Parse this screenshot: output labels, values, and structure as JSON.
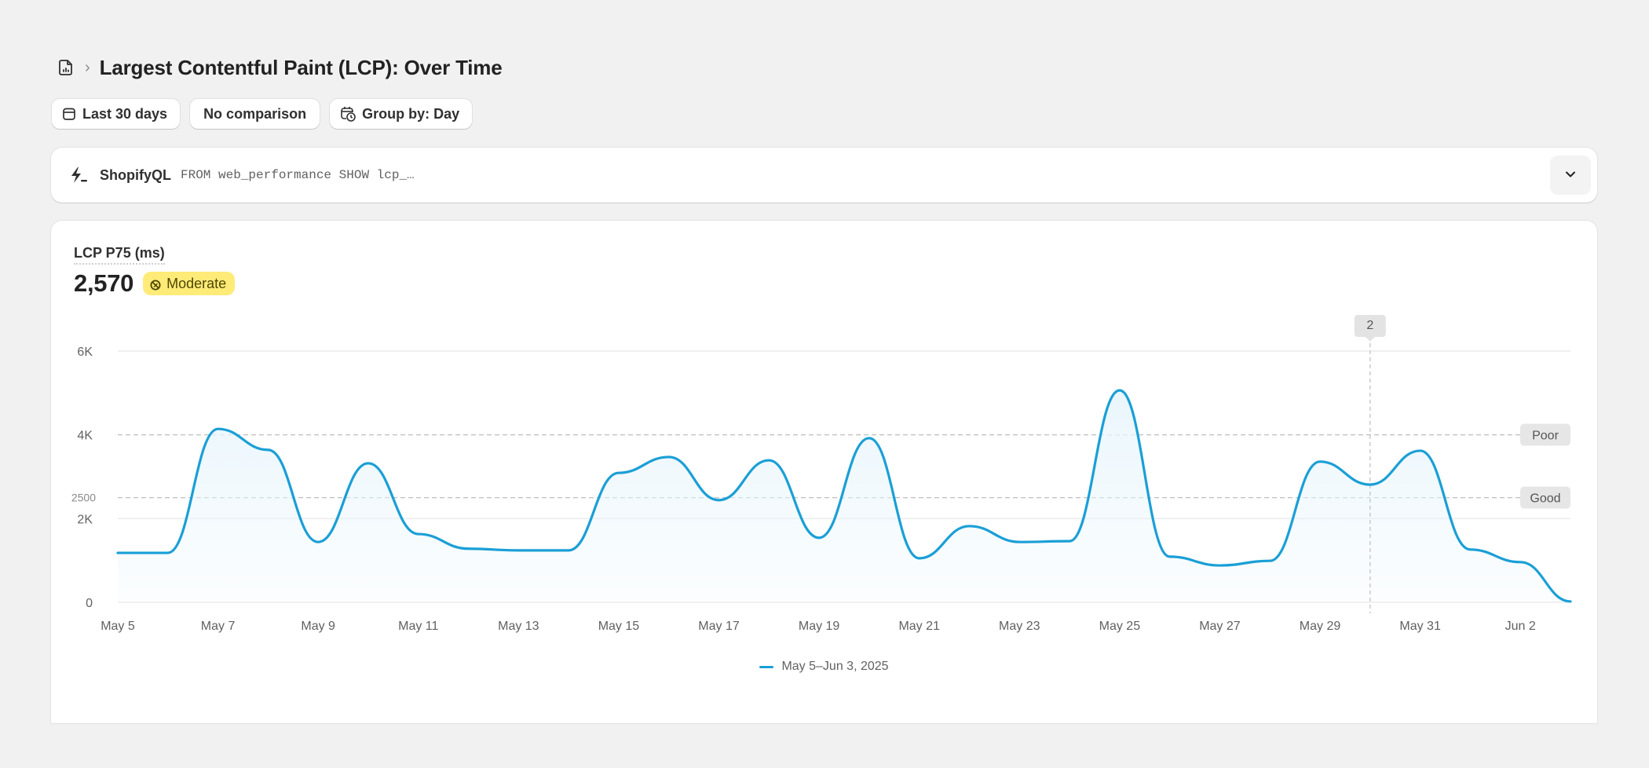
{
  "header": {
    "breadcrumb_icon": "report-icon",
    "title": "Largest Contentful Paint (LCP): Over Time"
  },
  "filters": {
    "date_range": "Last 30 days",
    "comparison": "No comparison",
    "group_by": "Group by: Day"
  },
  "query": {
    "label": "ShopifyQL",
    "code": "FROM web_performance SHOW lcp_…"
  },
  "metric": {
    "label": "LCP P75 (ms)",
    "value": "2,570",
    "badge": "Moderate",
    "badge_color": "#ffeb78"
  },
  "colors": {
    "line": "#1a9fd6",
    "fill": "#e8f5fc",
    "grid": "#ebebeb",
    "threshold": "#c4c4c4"
  },
  "hover": {
    "index_label": "2",
    "date": "May 30"
  },
  "chart_data": {
    "type": "line",
    "title": "LCP P75 (ms)",
    "xlabel": "",
    "ylabel": "",
    "ylim": [
      0,
      6000
    ],
    "grid": true,
    "legend_position": "bottom",
    "y_ticks": [
      "0",
      "2K",
      "4K",
      "6K"
    ],
    "x_tick_labels": [
      "May 5",
      "May 7",
      "May 9",
      "May 11",
      "May 13",
      "May 15",
      "May 17",
      "May 19",
      "May 21",
      "May 23",
      "May 25",
      "May 27",
      "May 29",
      "May 31",
      "Jun 2"
    ],
    "thresholds": [
      {
        "label": "Good",
        "value": 2500,
        "axis_label": "2500"
      },
      {
        "label": "Poor",
        "value": 4000
      }
    ],
    "x": [
      "May 5",
      "May 6",
      "May 7",
      "May 8",
      "May 9",
      "May 10",
      "May 11",
      "May 12",
      "May 13",
      "May 14",
      "May 15",
      "May 16",
      "May 17",
      "May 18",
      "May 19",
      "May 20",
      "May 21",
      "May 22",
      "May 23",
      "May 24",
      "May 25",
      "May 26",
      "May 27",
      "May 28",
      "May 29",
      "May 30",
      "May 31",
      "Jun 1",
      "Jun 2",
      "Jun 3"
    ],
    "series": [
      {
        "name": "May 5–Jun 3, 2025",
        "values": [
          1180,
          1180,
          4140,
          3640,
          1440,
          3320,
          1630,
          1280,
          1240,
          1240,
          3090,
          3470,
          2440,
          3390,
          1540,
          3920,
          1050,
          1820,
          1440,
          1460,
          5060,
          1090,
          880,
          990,
          3360,
          2810,
          3620,
          1260,
          960,
          20
        ]
      }
    ]
  }
}
